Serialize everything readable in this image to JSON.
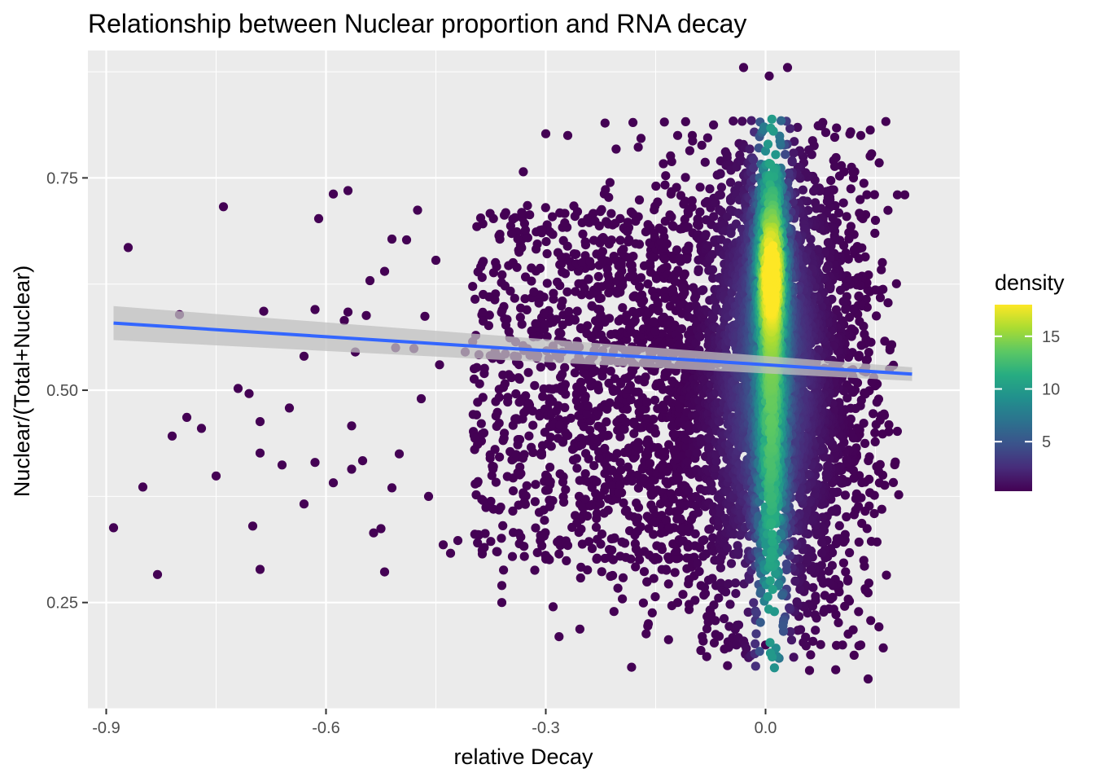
{
  "chart_data": {
    "type": "scatter",
    "title": "Relationship between Nuclear proportion and RNA decay",
    "xlabel": "relative Decay",
    "ylabel": "Nuclear/(Total+Nuclear)",
    "xlim": [
      -0.89,
      0.2
    ],
    "ylim": [
      0.12,
      0.9
    ],
    "x_ticks": [
      -0.9,
      -0.6,
      -0.3,
      0.0
    ],
    "x_tick_labels": [
      "-0.9",
      "-0.6",
      "-0.3",
      "0.0"
    ],
    "y_ticks": [
      0.25,
      0.5,
      0.75
    ],
    "y_tick_labels": [
      "0.25",
      "0.50",
      "0.75"
    ],
    "grid": true,
    "legend": {
      "title": "density",
      "placement": "right",
      "range": [
        0.3,
        18
      ],
      "ticks": [
        5,
        10,
        15
      ],
      "tick_labels": [
        "5",
        "10",
        "15"
      ],
      "colormap": [
        "#440154",
        "#472c7a",
        "#3b528b",
        "#2c728e",
        "#21908d",
        "#27ad81",
        "#5cc863",
        "#aadc32",
        "#fde725"
      ]
    },
    "trend_line": {
      "x": [
        -0.89,
        0.2
      ],
      "y": [
        0.579,
        0.519
      ],
      "color": "#3366ff",
      "confidence_band": {
        "lower": [
          0.559,
          0.511
        ],
        "upper": [
          0.599,
          0.527
        ],
        "color": "#c0c0c0"
      }
    },
    "outlier_points": [
      [
        -0.89,
        0.338
      ],
      [
        -0.87,
        0.668
      ],
      [
        -0.85,
        0.386
      ],
      [
        -0.83,
        0.283
      ],
      [
        -0.81,
        0.446
      ],
      [
        -0.79,
        0.468
      ],
      [
        -0.8,
        0.589
      ],
      [
        -0.77,
        0.455
      ],
      [
        -0.75,
        0.399
      ],
      [
        -0.74,
        0.716
      ],
      [
        -0.72,
        0.502
      ],
      [
        -0.705,
        0.496
      ],
      [
        -0.7,
        0.34
      ],
      [
        -0.69,
        0.463
      ],
      [
        -0.69,
        0.426
      ],
      [
        -0.69,
        0.289
      ],
      [
        -0.685,
        0.593
      ],
      [
        -0.66,
        0.412
      ],
      [
        -0.65,
        0.479
      ],
      [
        -0.63,
        0.366
      ],
      [
        -0.63,
        0.54
      ],
      [
        -0.615,
        0.595
      ],
      [
        -0.615,
        0.415
      ],
      [
        -0.61,
        0.702
      ],
      [
        -0.59,
        0.731
      ],
      [
        -0.59,
        0.391
      ],
      [
        -0.57,
        0.735
      ],
      [
        -0.575,
        0.582
      ],
      [
        -0.565,
        0.458
      ],
      [
        -0.56,
        0.545
      ],
      [
        -0.565,
        0.407
      ],
      [
        -0.55,
        0.417
      ],
      [
        -0.54,
        0.629
      ],
      [
        -0.535,
        0.332
      ],
      [
        -0.525,
        0.337
      ],
      [
        -0.52,
        0.286
      ],
      [
        -0.51,
        0.678
      ],
      [
        -0.51,
        0.385
      ],
      [
        -0.5,
        0.425
      ],
      [
        -0.48,
        0.549
      ],
      [
        -0.475,
        0.712
      ],
      [
        -0.465,
        0.587
      ],
      [
        -0.46,
        0.375
      ],
      [
        -0.45,
        0.653
      ],
      [
        -0.44,
        0.318
      ],
      [
        -0.43,
        0.308
      ],
      [
        -0.42,
        0.323
      ],
      [
        -0.41,
        0.545
      ],
      [
        -0.57,
        0.592
      ],
      [
        -0.545,
        0.588
      ],
      [
        -0.52,
        0.64
      ],
      [
        -0.49,
        0.677
      ],
      [
        -0.505,
        0.55
      ],
      [
        -0.47,
        0.49
      ],
      [
        -0.445,
        0.53
      ]
    ],
    "dense_clusters": [
      {
        "name_hidden": true,
        "x_center": 0.005,
        "x_spread": 0.055,
        "y_center": 0.51,
        "y_spread": 0.145,
        "count": 2600
      },
      {
        "name_hidden": true,
        "x_center": 0.005,
        "x_spread": 0.02,
        "y_center": 0.6,
        "y_spread": 0.08,
        "count": 900
      },
      {
        "name_hidden": true,
        "x_center": -0.12,
        "x_spread": 0.1,
        "y_center": 0.5,
        "y_spread": 0.12,
        "count": 1100
      },
      {
        "name_hidden": true,
        "x_center": 0.09,
        "x_spread": 0.04,
        "y_center": 0.5,
        "y_spread": 0.15,
        "count": 500
      }
    ],
    "extreme_points": [
      [
        -0.03,
        0.88
      ],
      [
        0.005,
        0.87
      ],
      [
        0.03,
        0.88
      ],
      [
        -0.1,
        0.8
      ],
      [
        -0.12,
        0.8
      ],
      [
        0.13,
        0.8
      ],
      [
        -0.3,
        0.802
      ],
      [
        -0.27,
        0.8
      ],
      [
        0.14,
        0.16
      ],
      [
        0.0,
        0.2
      ],
      [
        0.06,
        0.17
      ],
      [
        0.12,
        0.75
      ],
      [
        0.18,
        0.73
      ],
      [
        0.15,
        0.7
      ],
      [
        0.17,
        0.55
      ],
      [
        0.16,
        0.4
      ],
      [
        0.13,
        0.2
      ],
      [
        0.19,
        0.73
      ],
      [
        -0.16,
        0.225
      ],
      [
        -0.12,
        0.25
      ],
      [
        -0.29,
        0.245
      ],
      [
        -0.36,
        0.25
      ],
      [
        -0.36,
        0.27
      ]
    ]
  }
}
